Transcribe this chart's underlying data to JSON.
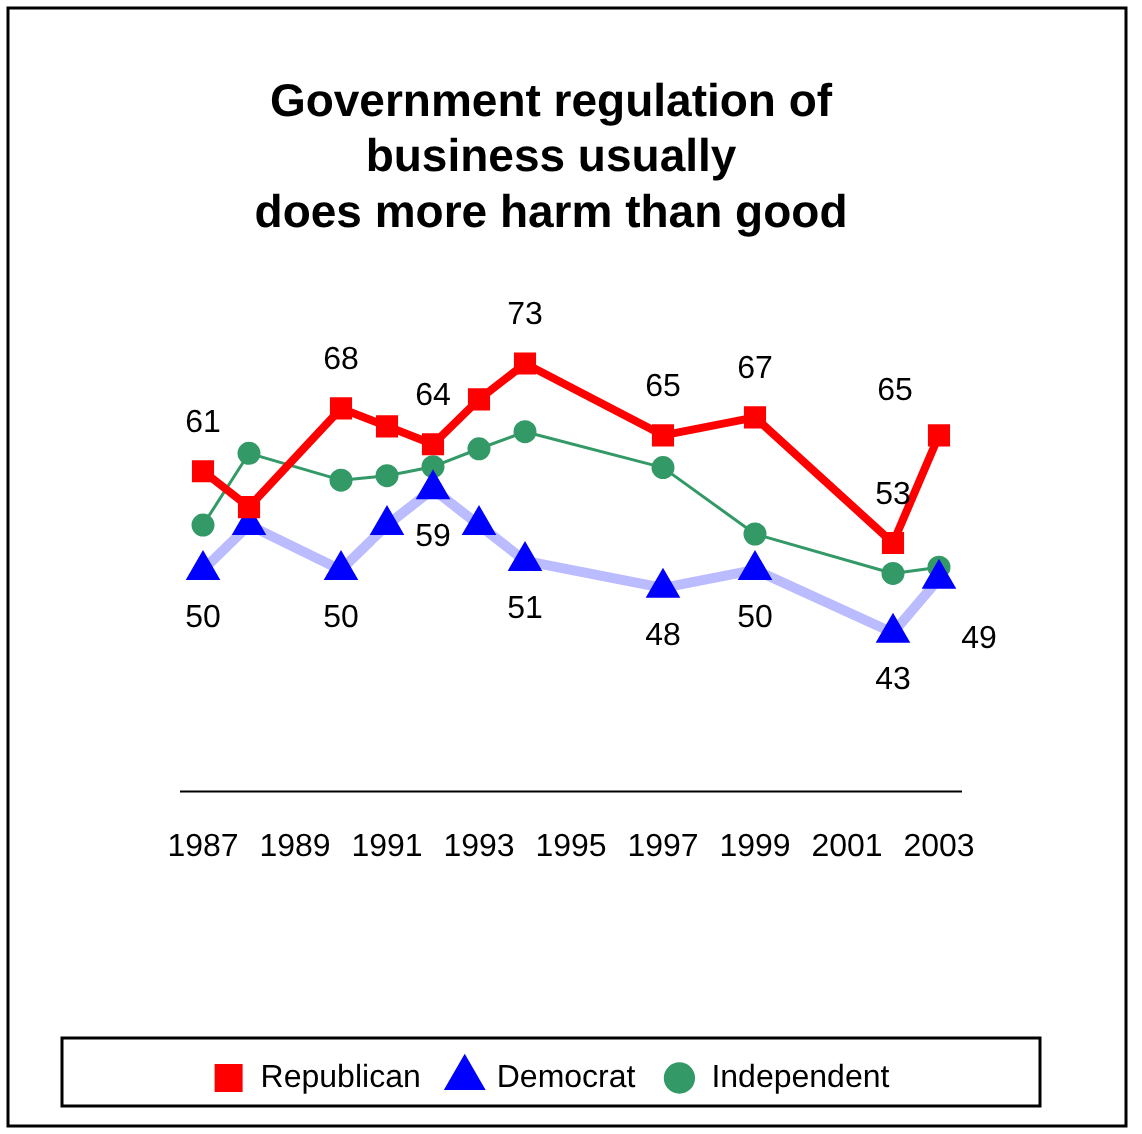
{
  "chart_data": {
    "type": "line",
    "title": "Government regulation of\nbusiness usually\ndoes more harm than good",
    "x": [
      1987,
      1988,
      1990,
      1991,
      1992,
      1993,
      1994,
      1997,
      1999,
      2002,
      2003
    ],
    "series": [
      {
        "name": "Republican",
        "color": "#ff0000",
        "marker": "square",
        "values": [
          61,
          57,
          68,
          66,
          64,
          69,
          73,
          65,
          67,
          53,
          65
        ],
        "value_labels": [
          "61",
          null,
          "68",
          null,
          "64",
          null,
          "73",
          "65",
          "67",
          "53",
          "65"
        ]
      },
      {
        "name": "Democrat",
        "color": "#0000ff",
        "marker": "triangle",
        "values": [
          50,
          55,
          50,
          55,
          59,
          55,
          51,
          48,
          50,
          43,
          49
        ],
        "value_labels": [
          "50",
          null,
          "50",
          null,
          "59",
          null,
          "51",
          "48",
          "50",
          "43",
          "49"
        ]
      },
      {
        "name": "Independent",
        "color": "#339966",
        "marker": "circle",
        "values": [
          55,
          63,
          60,
          60.5,
          61.5,
          63.5,
          65.4,
          61.4,
          54,
          49.6,
          50.3
        ]
      }
    ],
    "xlim": [
      1986.5,
      2003.5
    ],
    "xticks": [
      1987,
      1989,
      1991,
      1993,
      1995,
      1997,
      1999,
      2001,
      2003
    ],
    "tick_labels": "x",
    "grid": false,
    "legend": "bottom"
  }
}
